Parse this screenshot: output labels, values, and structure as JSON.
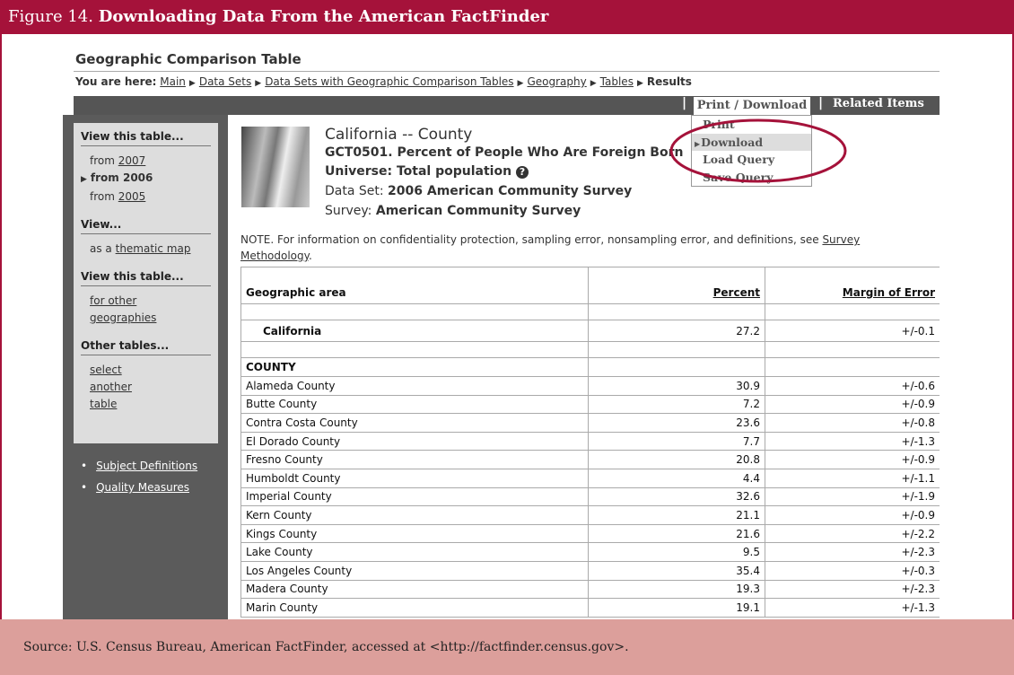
{
  "figure": {
    "label": "Figure 14.",
    "title": "Downloading Data From the American FactFinder"
  },
  "page": {
    "title": "Geographic Comparison Table",
    "breadcrumb": {
      "prefix": "You are here:",
      "links": [
        "Main",
        "Data Sets",
        "Data Sets with Geographic Comparison Tables",
        "Geography",
        "Tables"
      ],
      "current": "Results"
    }
  },
  "menu": {
    "items": [
      "Print / Download",
      "Related Items"
    ],
    "dropdown": [
      "Print",
      "Download",
      "Load Query",
      "Save Query"
    ]
  },
  "sidebar": {
    "sections": [
      {
        "heading": "View this table...",
        "items": [
          {
            "text": "from",
            "link": "2007"
          },
          {
            "text": "from 2006",
            "current": true
          },
          {
            "text": "from",
            "link": "2005"
          }
        ]
      },
      {
        "heading": "View...",
        "items": [
          {
            "text": "as a",
            "link": "thematic map"
          }
        ]
      },
      {
        "heading": "View this table...",
        "items": [
          {
            "link": "for other geographies"
          }
        ]
      },
      {
        "heading": "Other tables...",
        "items": [
          {
            "link": "select another table"
          }
        ]
      }
    ],
    "links": [
      "Subject Definitions",
      "Quality Measures"
    ]
  },
  "dataset": {
    "heading": "California -- County",
    "table_id": "GCT0501. Percent of People Who Are Foreign Born",
    "universe": "Universe: Total population",
    "data_set_label": "Data Set:",
    "data_set": "2006 American Community Survey",
    "survey_label": "Survey:",
    "survey": "American Community Survey"
  },
  "note": {
    "text": "NOTE. For information on confidentiality protection, sampling error, nonsampling error, and definitions, see",
    "link": "Survey Methodology",
    "end": "."
  },
  "table": {
    "columns": [
      "Geographic area",
      "Percent",
      "Margin of Error"
    ],
    "total": [
      "California",
      27.2,
      "+/-0.1"
    ],
    "group": "COUNTY",
    "rows": [
      [
        "Alameda County",
        30.9,
        "+/-0.6"
      ],
      [
        "Butte County",
        7.2,
        "+/-0.9"
      ],
      [
        "Contra Costa County",
        23.6,
        "+/-0.8"
      ],
      [
        "El Dorado County",
        7.7,
        "+/-1.3"
      ],
      [
        "Fresno County",
        20.8,
        "+/-0.9"
      ],
      [
        "Humboldt County",
        4.4,
        "+/-1.1"
      ],
      [
        "Imperial County",
        32.6,
        "+/-1.9"
      ],
      [
        "Kern County",
        21.1,
        "+/-0.9"
      ],
      [
        "Kings County",
        21.6,
        "+/-2.2"
      ],
      [
        "Lake County",
        9.5,
        "+/-2.3"
      ],
      [
        "Los Angeles County",
        35.4,
        "+/-0.3"
      ],
      [
        "Madera County",
        19.3,
        "+/-2.3"
      ],
      [
        "Marin County",
        19.1,
        "+/-1.3"
      ]
    ]
  },
  "source": "Source: U.S. Census Bureau, American FactFinder, accessed at <http://factfinder.census.gov>."
}
